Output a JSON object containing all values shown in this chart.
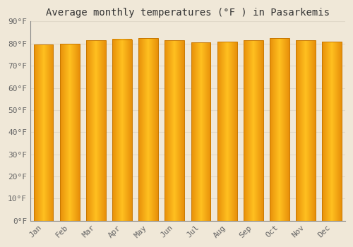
{
  "title": "Average monthly temperatures (°F ) in Pasarkemis",
  "months": [
    "Jan",
    "Feb",
    "Mar",
    "Apr",
    "May",
    "Jun",
    "Jul",
    "Aug",
    "Sep",
    "Oct",
    "Nov",
    "Dec"
  ],
  "values": [
    79.5,
    80.0,
    81.5,
    82.0,
    82.5,
    81.5,
    80.5,
    81.0,
    81.5,
    82.5,
    81.5,
    81.0
  ],
  "bar_color_left": "#E8900A",
  "bar_color_center": "#FFC020",
  "bar_color_right": "#E8900A",
  "background_color": "#f0e8d8",
  "plot_bg_color": "#f0e8d8",
  "ylim": [
    0,
    90
  ],
  "yticks": [
    0,
    10,
    20,
    30,
    40,
    50,
    60,
    70,
    80,
    90
  ],
  "ytick_labels": [
    "0°F",
    "10°F",
    "20°F",
    "30°F",
    "40°F",
    "50°F",
    "60°F",
    "70°F",
    "80°F",
    "90°F"
  ],
  "grid_color": "#e0d8c8",
  "title_fontsize": 10,
  "tick_fontsize": 8,
  "bar_edge_color": "#c87800"
}
